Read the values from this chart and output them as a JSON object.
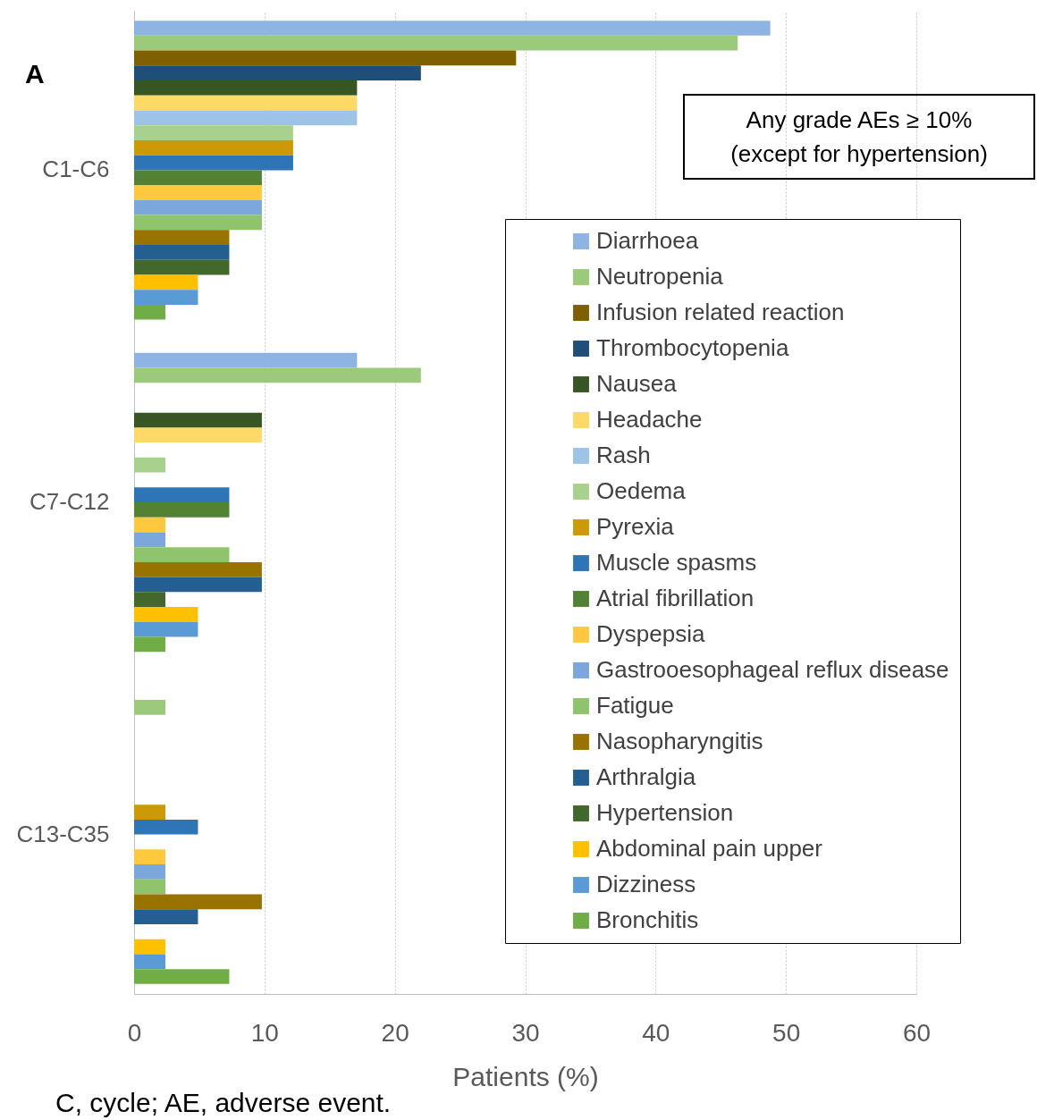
{
  "chart_data": {
    "type": "bar",
    "orientation": "horizontal",
    "title": "A",
    "xlabel": "Patients (%)",
    "categories": [
      "C1-C6",
      "C7-C12",
      "C13-C35"
    ],
    "xlim": [
      0,
      60
    ],
    "xticks": [
      0,
      10,
      20,
      30,
      40,
      50,
      60
    ],
    "grid": "x",
    "legend": "right",
    "annotations": [
      "Any grade AEs ≥ 10%\n(except for hypertension)",
      "C, cycle; AE, adverse event."
    ],
    "series": [
      {
        "name": "Diarrhoea",
        "color": "#8db4e2",
        "values": [
          48.8,
          17.1,
          null
        ]
      },
      {
        "name": "Neutropenia",
        "color": "#9bcb7a",
        "values": [
          46.3,
          22.0,
          2.4
        ]
      },
      {
        "name": "Infusion related reaction",
        "color": "#7f6000",
        "values": [
          29.3,
          null,
          null
        ]
      },
      {
        "name": "Thrombocytopenia",
        "color": "#1f4e79",
        "values": [
          22.0,
          null,
          null
        ]
      },
      {
        "name": "Nausea",
        "color": "#375623",
        "values": [
          17.1,
          9.8,
          null
        ]
      },
      {
        "name": "Headache",
        "color": "#ffd966",
        "values": [
          17.1,
          9.8,
          null
        ]
      },
      {
        "name": "Rash",
        "color": "#9dc3e6",
        "values": [
          17.1,
          null,
          null
        ]
      },
      {
        "name": "Oedema",
        "color": "#a9d18e",
        "values": [
          12.2,
          2.4,
          null
        ]
      },
      {
        "name": "Pyrexia",
        "color": "#cc9a06",
        "values": [
          12.2,
          null,
          2.4
        ]
      },
      {
        "name": "Muscle spasms",
        "color": "#2e75b6",
        "values": [
          12.2,
          7.3,
          4.9
        ]
      },
      {
        "name": "Atrial fibrillation",
        "color": "#548235",
        "values": [
          9.8,
          7.3,
          null
        ]
      },
      {
        "name": "Dyspepsia",
        "color": "#ffc83d",
        "values": [
          9.8,
          2.4,
          2.4
        ]
      },
      {
        "name": "Gastrooesophageal reflux disease",
        "color": "#7ba7dc",
        "values": [
          9.8,
          2.4,
          2.4
        ]
      },
      {
        "name": "Fatigue",
        "color": "#8fc46d",
        "values": [
          9.8,
          7.3,
          2.4
        ]
      },
      {
        "name": "Nasopharyngitis",
        "color": "#997300",
        "values": [
          7.3,
          9.8,
          9.8
        ]
      },
      {
        "name": "Arthralgia",
        "color": "#255e91",
        "values": [
          7.3,
          9.8,
          4.9
        ]
      },
      {
        "name": "Hypertension",
        "color": "#43682b",
        "values": [
          7.3,
          2.4,
          null
        ]
      },
      {
        "name": "Abdominal pain upper",
        "color": "#ffc000",
        "values": [
          4.9,
          4.9,
          2.4
        ]
      },
      {
        "name": "Dizziness",
        "color": "#5b9bd5",
        "values": [
          4.9,
          4.9,
          2.4
        ]
      },
      {
        "name": "Bronchitis",
        "color": "#70ad47",
        "values": [
          2.4,
          2.4,
          7.3
        ]
      }
    ]
  }
}
